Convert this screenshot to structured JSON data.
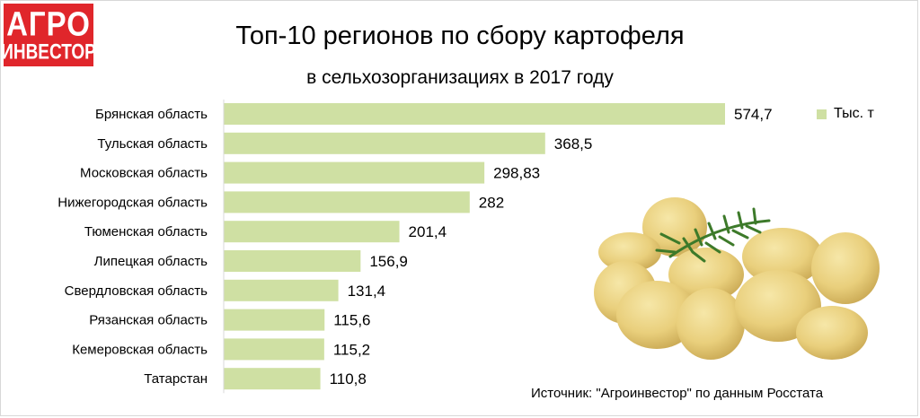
{
  "logo": {
    "line1": "АГРО",
    "line2": "ИНВЕСТОР"
  },
  "colors": {
    "bar": "#cfe0a3",
    "logo": "#e0262b"
  },
  "chart_data": {
    "type": "bar",
    "orientation": "horizontal",
    "title": "Топ-10 регионов по сбору картофеля",
    "subtitle": "в сельхозорганизациях в 2017 году",
    "categories": [
      "Брянская область",
      "Тульская область",
      "Московская область",
      "Нижегородская область",
      "Тюменская область",
      "Липецкая область",
      "Свердловская область",
      "Рязанская область",
      "Кемеровская область",
      "Татарстан"
    ],
    "series": [
      {
        "name": "Тыс. т",
        "values": [
          574.7,
          368.5,
          298.83,
          282,
          201.4,
          156.9,
          131.4,
          115.6,
          115.2,
          110.8
        ],
        "labels": [
          "574,7",
          "368,5",
          "298,83",
          "282",
          "201,4",
          "156,9",
          "131,4",
          "115,6",
          "115,2",
          "110,8"
        ]
      }
    ],
    "xlim": [
      0,
      574.7
    ],
    "grid": false,
    "legend": "top-right"
  },
  "source": "Источник: \"Агроинвестор\" по данным Росстата"
}
